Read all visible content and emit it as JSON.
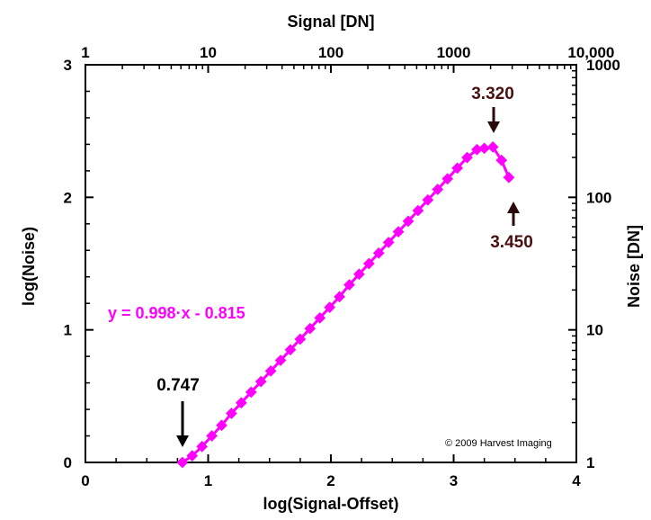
{
  "chart_data": {
    "type": "line",
    "xlabel": "log(Signal-Offset)",
    "ylabel": "log(Noise)",
    "x2label": "Signal [DN]",
    "y2label": "Noise [DN]",
    "xlim": [
      0,
      4
    ],
    "ylim": [
      0,
      3
    ],
    "x_ticks": [
      "0",
      "1",
      "2",
      "3",
      "4"
    ],
    "y_ticks": [
      "0",
      "1",
      "2",
      "3"
    ],
    "x2_ticks": [
      "1",
      "10",
      "100",
      "1000",
      "10,000"
    ],
    "y2_ticks": [
      "1",
      "10",
      "100",
      "1000"
    ],
    "grid": false,
    "series": [
      {
        "color": "#ff00ff",
        "x": [
          0.79,
          0.87,
          0.95,
          1.03,
          1.11,
          1.19,
          1.27,
          1.35,
          1.43,
          1.51,
          1.59,
          1.67,
          1.75,
          1.83,
          1.91,
          1.99,
          2.07,
          2.15,
          2.23,
          2.31,
          2.39,
          2.47,
          2.55,
          2.63,
          2.71,
          2.79,
          2.87,
          2.95,
          3.03,
          3.11,
          3.19,
          3.25,
          3.32,
          3.39,
          3.45
        ],
        "y": [
          0.0,
          0.05,
          0.12,
          0.2,
          0.28,
          0.37,
          0.45,
          0.53,
          0.61,
          0.69,
          0.77,
          0.85,
          0.93,
          1.01,
          1.09,
          1.17,
          1.25,
          1.34,
          1.42,
          1.5,
          1.58,
          1.66,
          1.74,
          1.82,
          1.9,
          1.98,
          2.06,
          2.14,
          2.22,
          2.3,
          2.36,
          2.37,
          2.38,
          2.28,
          2.15
        ]
      }
    ],
    "annotations": [
      {
        "id": "a1",
        "text": "0.747",
        "color": "#000000"
      },
      {
        "id": "a2",
        "text": "3.320",
        "color": "#4a1010"
      },
      {
        "id": "a3",
        "text": "3.450",
        "color": "#4a1010"
      }
    ],
    "equation": {
      "text": "y = 0.998·x - 0.815",
      "color": "#ff00ff"
    },
    "copyright": "© 2009 Harvest Imaging"
  }
}
